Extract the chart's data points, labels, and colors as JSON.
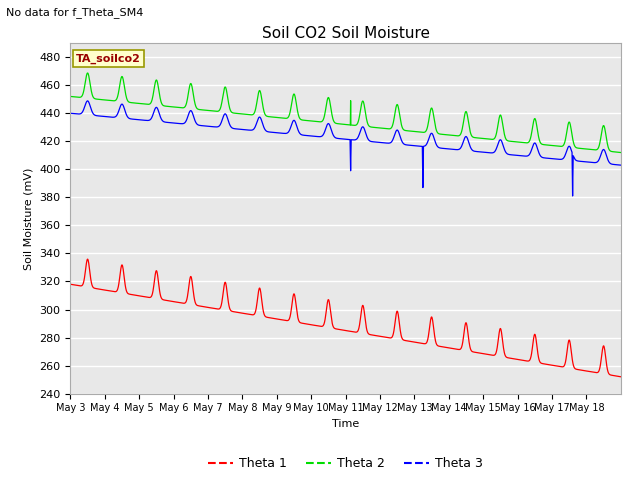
{
  "title": "Soil CO2 Soil Moisture",
  "subtitle": "No data for f_Theta_SM4",
  "ylabel": "Soil Moisture (mV)",
  "xlabel": "Time",
  "ylim": [
    240,
    490
  ],
  "yticks": [
    240,
    260,
    280,
    300,
    320,
    340,
    360,
    380,
    400,
    420,
    440,
    460,
    480
  ],
  "x_labels": [
    "May 3",
    "May 4",
    "May 5",
    "May 6",
    "May 7",
    "May 8",
    "May 9",
    "May 10",
    "May 11",
    "May 12",
    "May 13",
    "May 14",
    "May 15",
    "May 16",
    "May 17",
    "May 18"
  ],
  "annotation_box": "TA_soilco2",
  "bg_color": "#e8e8e8",
  "line1_color": "#ff0000",
  "line2_color": "#00dd00",
  "line3_color": "#0000ff",
  "legend_labels": [
    "Theta 1",
    "Theta 2",
    "Theta 3"
  ],
  "title_fontsize": 11,
  "label_fontsize": 8,
  "tick_fontsize": 8,
  "subtitle_fontsize": 8
}
